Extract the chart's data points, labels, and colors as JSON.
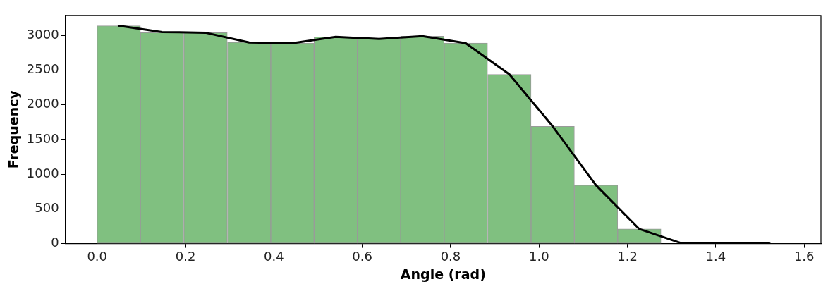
{
  "chart_data": {
    "type": "histogram",
    "xlabel": "Angle (rad)",
    "ylabel": "Frequency",
    "bins": [
      0,
      0.098,
      0.196,
      0.295,
      0.393,
      0.491,
      0.589,
      0.687,
      0.785,
      0.884,
      0.982,
      1.08,
      1.178,
      1.276
    ],
    "series": [
      {
        "color": "#80c080",
        "values": [
          3140,
          3040,
          3040,
          2900,
          2890,
          2980,
          2950,
          2990,
          2890,
          2440,
          1690,
          840,
          210
        ]
      },
      {
        "type": "line",
        "color": "#000000",
        "x": [
          0.049,
          0.147,
          0.245,
          0.344,
          0.442,
          0.54,
          0.638,
          0.736,
          0.834,
          0.933,
          1.031,
          1.129,
          1.227,
          1.325,
          1.424,
          1.522
        ],
        "values": [
          3140,
          3050,
          3040,
          2900,
          2890,
          2980,
          2950,
          2990,
          2890,
          2440,
          1690,
          840,
          210,
          0,
          0,
          0
        ]
      }
    ],
    "xlim": [
      -0.072,
      1.638
    ],
    "xticks": [
      {
        "value": 0,
        "label": "0.0"
      },
      0.2,
      0.4,
      0.6,
      0.8,
      {
        "value": 1,
        "label": "1.0"
      },
      1.2,
      1.4,
      1.6
    ],
    "ylim": [
      0,
      3290
    ],
    "yticks": [
      0,
      500,
      1000,
      1500,
      2000,
      2500,
      3000
    ],
    "grid": false,
    "legend": false
  }
}
